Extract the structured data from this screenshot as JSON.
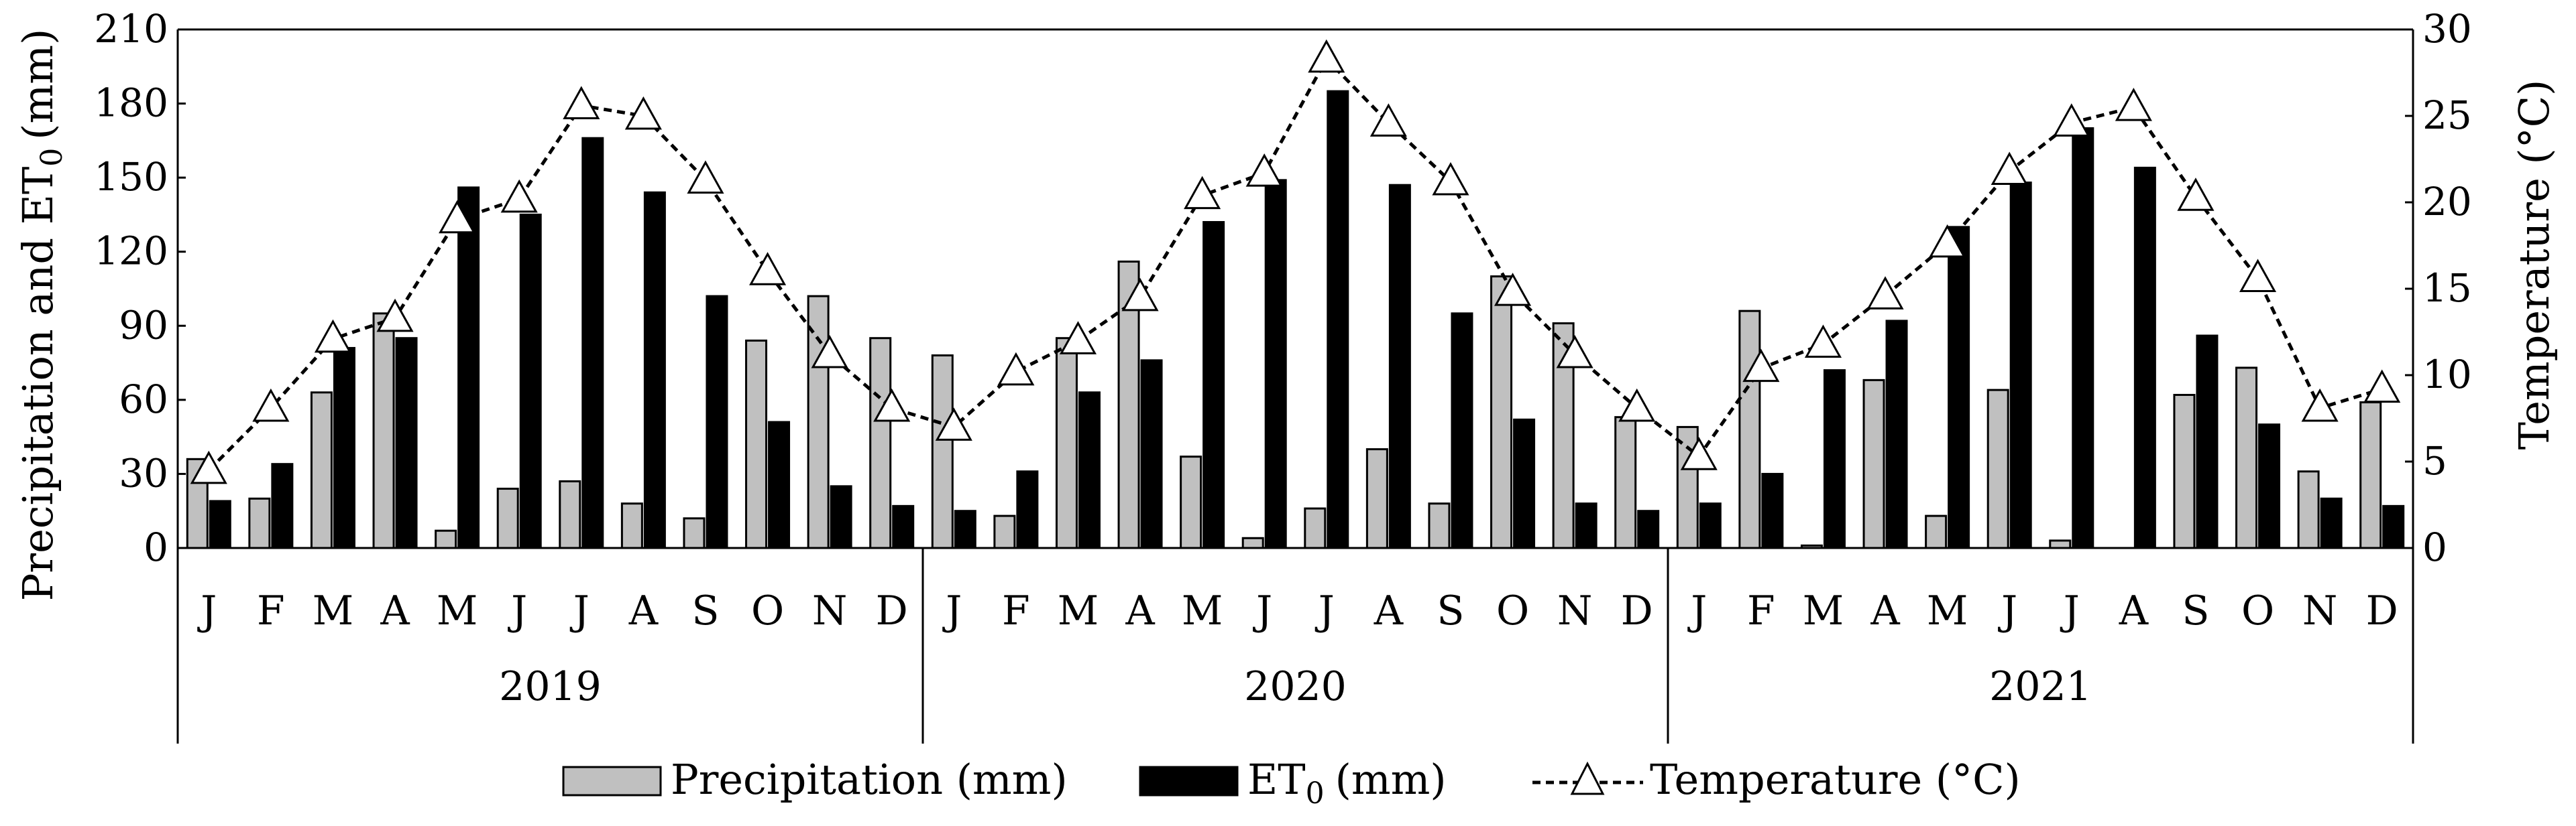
{
  "chart_data": {
    "type": "bar+line",
    "years": [
      "2019",
      "2020",
      "2021"
    ],
    "months": [
      "J",
      "F",
      "M",
      "A",
      "M",
      "J",
      "J",
      "A",
      "S",
      "O",
      "N",
      "D"
    ],
    "left_axis": {
      "label_main": "Precipitation and ET",
      "label_sub": "0",
      "label_unit": "(mm)",
      "ylim": [
        0,
        210
      ],
      "ticks": [
        0,
        30,
        60,
        90,
        120,
        150,
        180,
        210
      ]
    },
    "right_axis": {
      "label": "Temperature (°C)",
      "ylim": [
        0,
        30
      ],
      "ticks": [
        0,
        5,
        10,
        15,
        20,
        25,
        30
      ]
    },
    "series": [
      {
        "name": "Precipitation (mm)",
        "kind": "bar",
        "axis": "left",
        "color": "#c0c0c0",
        "values": [
          36,
          20,
          63,
          95,
          7,
          24,
          27,
          18,
          12,
          84,
          102,
          85,
          78,
          13,
          85,
          116,
          37,
          4,
          16,
          40,
          18,
          110,
          91,
          53,
          49,
          96,
          1,
          68,
          13,
          64,
          3,
          0,
          62,
          73,
          31,
          59
        ]
      },
      {
        "name": "ET",
        "name_sub": "0",
        "name_unit": "(mm)",
        "kind": "bar",
        "axis": "left",
        "color": "#000000",
        "values": [
          19,
          34,
          81,
          85,
          146,
          135,
          166,
          144,
          102,
          51,
          25,
          17,
          15,
          31,
          63,
          76,
          132,
          149,
          185,
          147,
          95,
          52,
          18,
          15,
          18,
          30,
          72,
          92,
          130,
          148,
          170,
          154,
          86,
          50,
          20,
          17
        ]
      },
      {
        "name": "Temperature (°C)",
        "kind": "line",
        "axis": "right",
        "style": "dashed",
        "marker": "triangle",
        "values": [
          4.5,
          8.1,
          12.1,
          13.3,
          19.0,
          20.2,
          25.6,
          25.0,
          21.3,
          16.0,
          11.2,
          8.1,
          7.0,
          10.2,
          12.0,
          14.5,
          20.4,
          21.7,
          28.3,
          24.6,
          21.2,
          14.8,
          11.2,
          8.1,
          5.3,
          10.4,
          11.8,
          14.6,
          17.6,
          21.8,
          24.6,
          25.5,
          20.3,
          15.6,
          8.1,
          9.2
        ]
      }
    ],
    "legend": {
      "placement": "bottom"
    }
  }
}
